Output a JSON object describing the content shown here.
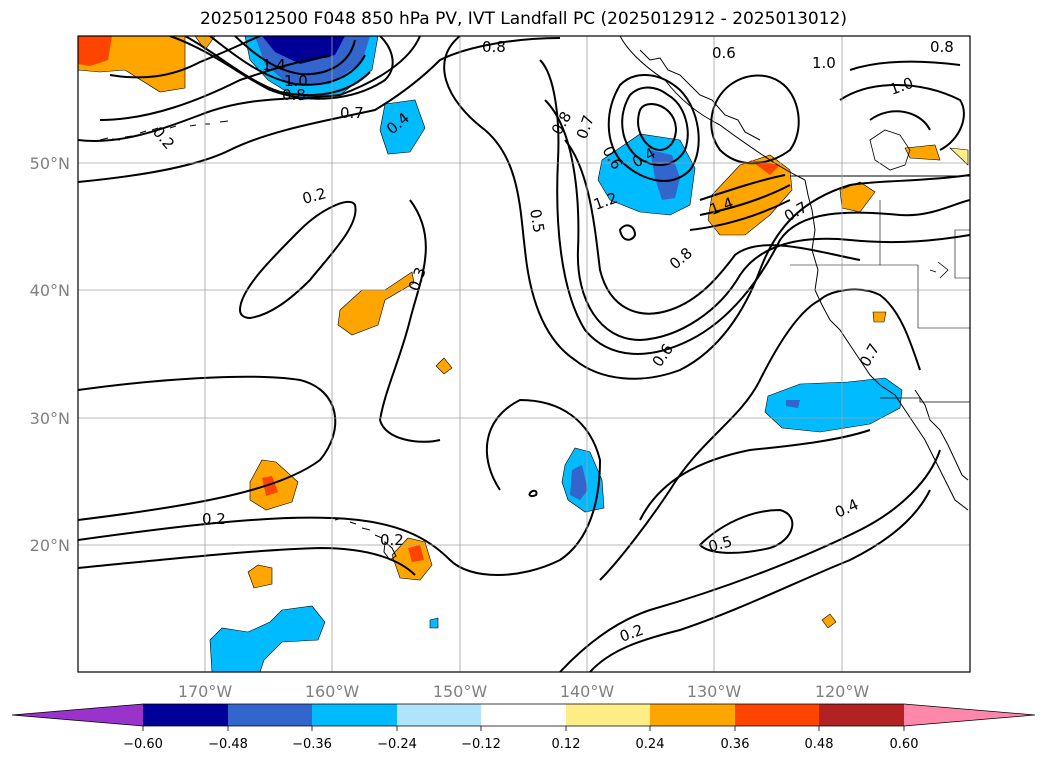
{
  "title": "2025012500 F048 850 hPa PV, IVT Landfall PC (2025012912 - 2025013012)",
  "map": {
    "lon_ticks": [
      "170°W",
      "160°W",
      "150°W",
      "140°W",
      "130°W",
      "120°W"
    ],
    "lat_ticks": [
      "50°N",
      "40°N",
      "30°N",
      "20°N"
    ],
    "grid": true
  },
  "contour_labels": [
    {
      "text": "0.8"
    },
    {
      "text": "0.6"
    },
    {
      "text": "1.0"
    },
    {
      "text": "1.0"
    },
    {
      "text": "0.8"
    },
    {
      "text": "1.4"
    },
    {
      "text": "1.0"
    },
    {
      "text": "0.8"
    },
    {
      "text": "0.7"
    },
    {
      "text": "0.4"
    },
    {
      "text": "0.2"
    },
    {
      "text": "0.8"
    },
    {
      "text": "0.7"
    },
    {
      "text": "0.6"
    },
    {
      "text": "0.4"
    },
    {
      "text": "1.2"
    },
    {
      "text": "0.5"
    },
    {
      "text": "1.4"
    },
    {
      "text": "0.7"
    },
    {
      "text": "0.2"
    },
    {
      "text": "0.3"
    },
    {
      "text": "0.8"
    },
    {
      "text": "0.6"
    },
    {
      "text": "0.7"
    },
    {
      "text": "0.2"
    },
    {
      "text": "0.2"
    },
    {
      "text": "0.5"
    },
    {
      "text": "0.4"
    },
    {
      "text": "0.2"
    }
  ],
  "colorbar": {
    "ticks": [
      "−0.60",
      "−0.48",
      "−0.36",
      "−0.24",
      "−0.12",
      "0.12",
      "0.24",
      "0.36",
      "0.48",
      "0.60"
    ],
    "colors": [
      "#9933cc",
      "#000099",
      "#3366cc",
      "#00bbff",
      "#b0e4fa",
      "#ffffff",
      "#ffee88",
      "#ffa500",
      "#ff4400",
      "#b22222",
      "#ff88aa"
    ]
  }
}
